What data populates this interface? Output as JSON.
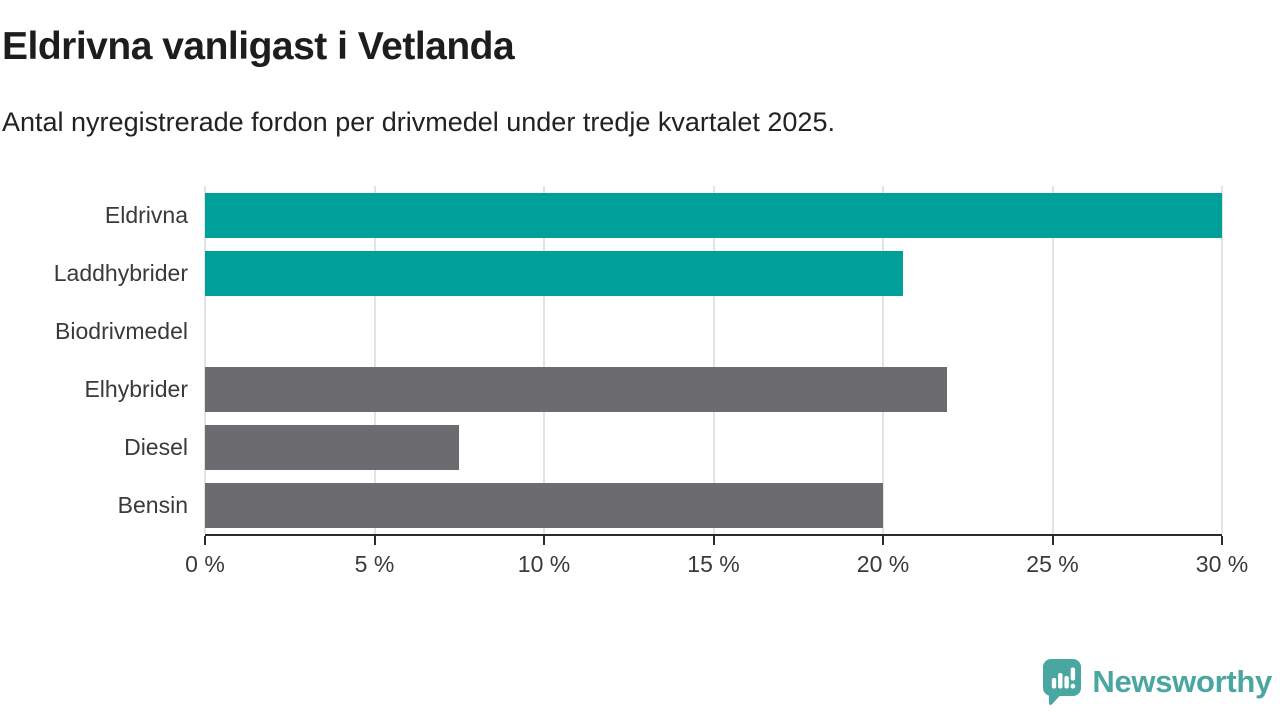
{
  "chart_data": {
    "type": "bar",
    "orientation": "horizontal",
    "title": "Eldrivna vanligast i Vetlanda",
    "subtitle": "Antal nyregistrerade fordon per drivmedel under tredje kvartalet 2025.",
    "categories": [
      "Eldrivna",
      "Laddhybrider",
      "Biodrivmedel",
      "Elhybrider",
      "Diesel",
      "Bensin"
    ],
    "values": [
      30,
      20.6,
      0,
      21.9,
      7.5,
      20
    ],
    "value_unit": "%",
    "bar_colors": [
      "#00a09a",
      "#00a09a",
      "#00a09a",
      "#6b6b70",
      "#6b6b70",
      "#6b6b70"
    ],
    "xlabel": "",
    "ylabel": "",
    "xlim": [
      0,
      30
    ],
    "x_ticks": [
      "0 %",
      "5 %",
      "10 %",
      "15 %",
      "20 %",
      "25 %",
      "30 %"
    ],
    "x_tick_values": [
      0,
      5,
      10,
      15,
      20,
      25,
      30
    ],
    "grid": true,
    "legend": false
  },
  "footer": {
    "brand": "Newsworthy",
    "icon": "newsworthy-logo-icon"
  },
  "colors": {
    "teal_bar": "#00a09a",
    "gray_bar": "#6b6b70",
    "brand": "#4aa6a0",
    "gridline": "#e3e3e3",
    "axis_line": "#2b2b2b",
    "axis_text": "#3a3a3a",
    "title_text": "#1d1d1d"
  }
}
